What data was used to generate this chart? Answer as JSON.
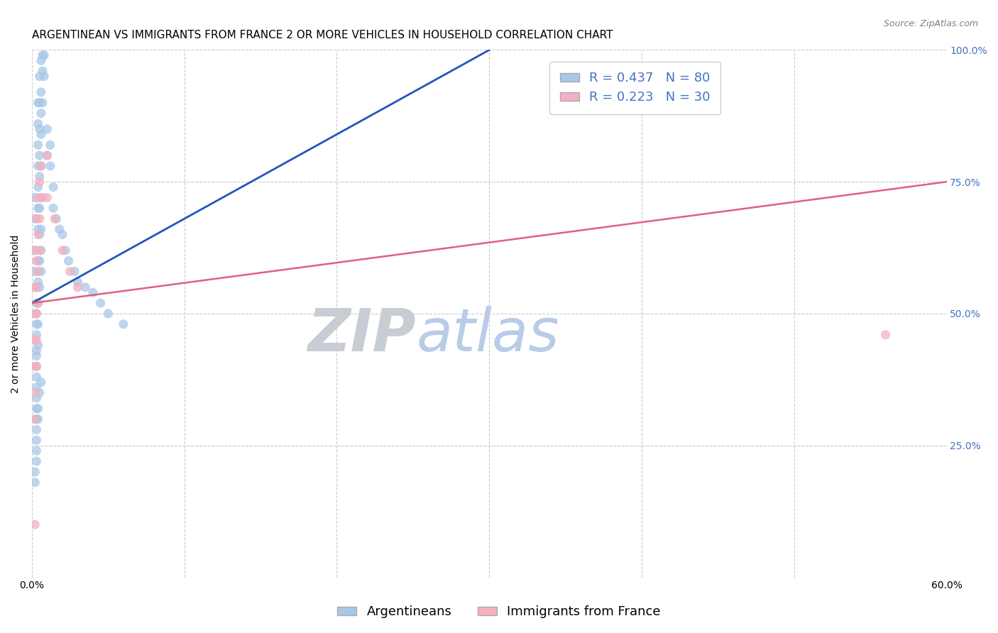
{
  "title": "ARGENTINEAN VS IMMIGRANTS FROM FRANCE 2 OR MORE VEHICLES IN HOUSEHOLD CORRELATION CHART",
  "source": "Source: ZipAtlas.com",
  "ylabel": "2 or more Vehicles in Household",
  "xlabel_blue": "Argentineans",
  "xlabel_pink": "Immigrants from France",
  "watermark_zip": "ZIP",
  "watermark_atlas": "atlas",
  "xlim": [
    0.0,
    0.6
  ],
  "ylim": [
    0.0,
    1.0
  ],
  "R_blue": 0.437,
  "N_blue": 80,
  "R_pink": 0.223,
  "N_pink": 30,
  "blue_color": "#a8c8e8",
  "pink_color": "#f4b0c0",
  "blue_line_color": "#2255bb",
  "pink_line_color": "#e06080",
  "blue_scatter": [
    [
      0.002,
      0.62
    ],
    [
      0.002,
      0.58
    ],
    [
      0.002,
      0.72
    ],
    [
      0.002,
      0.68
    ],
    [
      0.003,
      0.55
    ],
    [
      0.003,
      0.52
    ],
    [
      0.003,
      0.5
    ],
    [
      0.003,
      0.48
    ],
    [
      0.003,
      0.46
    ],
    [
      0.003,
      0.43
    ],
    [
      0.003,
      0.42
    ],
    [
      0.003,
      0.4
    ],
    [
      0.003,
      0.38
    ],
    [
      0.003,
      0.36
    ],
    [
      0.003,
      0.34
    ],
    [
      0.003,
      0.32
    ],
    [
      0.003,
      0.3
    ],
    [
      0.003,
      0.28
    ],
    [
      0.004,
      0.9
    ],
    [
      0.004,
      0.86
    ],
    [
      0.004,
      0.82
    ],
    [
      0.004,
      0.78
    ],
    [
      0.004,
      0.74
    ],
    [
      0.004,
      0.7
    ],
    [
      0.004,
      0.66
    ],
    [
      0.004,
      0.6
    ],
    [
      0.004,
      0.56
    ],
    [
      0.004,
      0.52
    ],
    [
      0.004,
      0.48
    ],
    [
      0.004,
      0.44
    ],
    [
      0.005,
      0.95
    ],
    [
      0.005,
      0.9
    ],
    [
      0.005,
      0.85
    ],
    [
      0.005,
      0.8
    ],
    [
      0.005,
      0.76
    ],
    [
      0.005,
      0.7
    ],
    [
      0.005,
      0.65
    ],
    [
      0.005,
      0.6
    ],
    [
      0.005,
      0.55
    ],
    [
      0.006,
      0.98
    ],
    [
      0.006,
      0.92
    ],
    [
      0.006,
      0.88
    ],
    [
      0.006,
      0.84
    ],
    [
      0.006,
      0.78
    ],
    [
      0.006,
      0.72
    ],
    [
      0.006,
      0.66
    ],
    [
      0.006,
      0.62
    ],
    [
      0.006,
      0.58
    ],
    [
      0.007,
      0.99
    ],
    [
      0.007,
      0.96
    ],
    [
      0.007,
      0.9
    ],
    [
      0.008,
      0.99
    ],
    [
      0.008,
      0.95
    ],
    [
      0.01,
      0.85
    ],
    [
      0.01,
      0.8
    ],
    [
      0.012,
      0.82
    ],
    [
      0.012,
      0.78
    ],
    [
      0.014,
      0.74
    ],
    [
      0.014,
      0.7
    ],
    [
      0.016,
      0.68
    ],
    [
      0.018,
      0.66
    ],
    [
      0.02,
      0.65
    ],
    [
      0.022,
      0.62
    ],
    [
      0.024,
      0.6
    ],
    [
      0.028,
      0.58
    ],
    [
      0.03,
      0.56
    ],
    [
      0.035,
      0.55
    ],
    [
      0.04,
      0.54
    ],
    [
      0.045,
      0.52
    ],
    [
      0.05,
      0.5
    ],
    [
      0.06,
      0.48
    ],
    [
      0.002,
      0.2
    ],
    [
      0.002,
      0.18
    ],
    [
      0.003,
      0.22
    ],
    [
      0.003,
      0.24
    ],
    [
      0.003,
      0.26
    ],
    [
      0.004,
      0.3
    ],
    [
      0.004,
      0.32
    ],
    [
      0.005,
      0.35
    ],
    [
      0.006,
      0.37
    ]
  ],
  "pink_scatter": [
    [
      0.002,
      0.62
    ],
    [
      0.002,
      0.55
    ],
    [
      0.002,
      0.5
    ],
    [
      0.002,
      0.45
    ],
    [
      0.002,
      0.4
    ],
    [
      0.002,
      0.35
    ],
    [
      0.002,
      0.3
    ],
    [
      0.003,
      0.68
    ],
    [
      0.003,
      0.6
    ],
    [
      0.003,
      0.55
    ],
    [
      0.003,
      0.5
    ],
    [
      0.003,
      0.45
    ],
    [
      0.003,
      0.4
    ],
    [
      0.004,
      0.72
    ],
    [
      0.004,
      0.65
    ],
    [
      0.004,
      0.58
    ],
    [
      0.004,
      0.52
    ],
    [
      0.005,
      0.75
    ],
    [
      0.005,
      0.68
    ],
    [
      0.005,
      0.62
    ],
    [
      0.006,
      0.78
    ],
    [
      0.007,
      0.72
    ],
    [
      0.01,
      0.8
    ],
    [
      0.01,
      0.72
    ],
    [
      0.015,
      0.68
    ],
    [
      0.02,
      0.62
    ],
    [
      0.025,
      0.58
    ],
    [
      0.03,
      0.55
    ],
    [
      0.56,
      0.46
    ],
    [
      0.002,
      0.1
    ]
  ],
  "blue_line_x": [
    0.0,
    0.3
  ],
  "blue_line_y": [
    0.52,
    1.0
  ],
  "pink_line_x": [
    0.0,
    0.6
  ],
  "pink_line_y": [
    0.52,
    0.75
  ],
  "title_fontsize": 11,
  "source_fontsize": 9,
  "axis_label_fontsize": 10,
  "tick_fontsize": 10,
  "legend_fontsize": 13,
  "watermark_fontsize": 60,
  "watermark_zip_color": "#c8ccd4",
  "watermark_atlas_color": "#b8cce8",
  "right_ytick_color": "#4472c4",
  "background_color": "#ffffff",
  "grid_color": "#cccccc"
}
